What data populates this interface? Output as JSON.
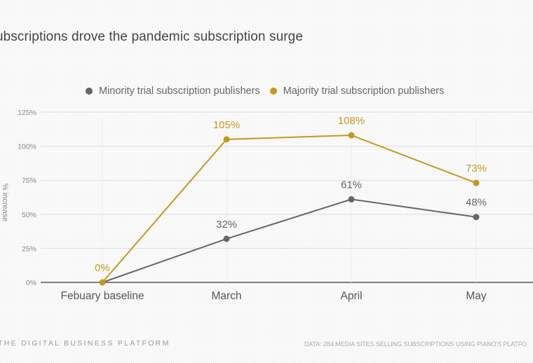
{
  "page": {
    "title": "ubscriptions drove the pandemic subscription surge",
    "footer_left": "THE DIGITAL BUSINESS PLATFORM",
    "footer_right": "DATA: 284 MEDIA SITES SELLING SUBSCRIPTIONS USING PIANO'S PLATFO"
  },
  "chart_data": {
    "type": "line",
    "title": "ubscriptions drove the pandemic subscription surge",
    "xlabel": "",
    "ylabel": "% increase",
    "categories": [
      "Febuary baseline",
      "March",
      "April",
      "May"
    ],
    "ylim": [
      0,
      125
    ],
    "yticks": [
      0,
      25,
      50,
      75,
      100,
      125
    ],
    "ytick_labels": [
      "0%",
      "25%",
      "50%",
      "75%",
      "100%",
      "125%"
    ],
    "grid": true,
    "legend_position": "top-center",
    "series": [
      {
        "name": "Minority trial subscription publishers",
        "color": "#666666",
        "values": [
          0,
          32,
          61,
          48
        ],
        "labels": [
          "",
          "32%",
          "61%",
          "48%"
        ]
      },
      {
        "name": "Majority trial subscription publishers",
        "color": "#c49a1a",
        "values": [
          0,
          105,
          108,
          73
        ],
        "labels": [
          "0%",
          "105%",
          "108%",
          "73%"
        ]
      }
    ]
  }
}
